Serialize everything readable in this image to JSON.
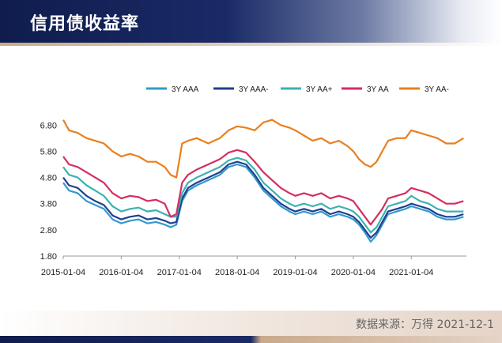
{
  "header": {
    "title": "信用债收益率"
  },
  "footer": {
    "source": "数据来源：万得 2021-12-1"
  },
  "colors": {
    "3Y AAA": "#3399cc",
    "3Y AAA-": "#1f3f8f",
    "3Y AA+": "#3bb2b2",
    "3Y AA": "#d42e63",
    "3Y AA-": "#e8801e"
  },
  "chart_data": {
    "type": "line",
    "title": "",
    "xlabel": "",
    "ylabel": "",
    "x_tick_labels": [
      "2015-01-04",
      "2016-01-04",
      "2017-01-04",
      "2018-01-04",
      "2019-01-04",
      "2020-01-04",
      "2021-01-04"
    ],
    "x_ticks": [
      2015.0,
      2016.0,
      2017.0,
      2018.0,
      2019.0,
      2020.0,
      2021.0
    ],
    "xlim": [
      2015.0,
      2021.95
    ],
    "y_tick_labels": [
      "6.80",
      "5.80",
      "4.80",
      "3.80",
      "2.80",
      "1.80"
    ],
    "y_ticks": [
      6.8,
      5.8,
      4.8,
      3.8,
      2.8,
      1.8
    ],
    "ylim": [
      1.8,
      7.2
    ],
    "legend_position": "top",
    "series": [
      {
        "name": "3Y AAA",
        "x": [
          2015.0,
          2015.1,
          2015.25,
          2015.4,
          2015.55,
          2015.7,
          2015.85,
          2016.0,
          2016.15,
          2016.3,
          2016.45,
          2016.6,
          2016.75,
          2016.85,
          2016.95,
          2017.05,
          2017.15,
          2017.3,
          2017.5,
          2017.7,
          2017.85,
          2018.0,
          2018.15,
          2018.3,
          2018.45,
          2018.6,
          2018.75,
          2018.9,
          2019.0,
          2019.15,
          2019.3,
          2019.45,
          2019.6,
          2019.75,
          2019.9,
          2020.0,
          2020.1,
          2020.2,
          2020.3,
          2020.4,
          2020.5,
          2020.6,
          2020.75,
          2020.9,
          2021.0,
          2021.15,
          2021.3,
          2021.45,
          2021.6,
          2021.75,
          2021.9
        ],
        "values": [
          4.6,
          4.3,
          4.2,
          3.9,
          3.75,
          3.6,
          3.2,
          3.05,
          3.15,
          3.2,
          3.05,
          3.1,
          3.0,
          2.9,
          3.0,
          3.9,
          4.3,
          4.5,
          4.7,
          4.9,
          5.2,
          5.3,
          5.2,
          4.8,
          4.3,
          4.0,
          3.7,
          3.5,
          3.4,
          3.5,
          3.4,
          3.5,
          3.3,
          3.4,
          3.3,
          3.2,
          3.0,
          2.7,
          2.35,
          2.6,
          3.0,
          3.4,
          3.5,
          3.6,
          3.7,
          3.6,
          3.5,
          3.3,
          3.2,
          3.2,
          3.3
        ]
      },
      {
        "name": "3Y AAA-",
        "x": [
          2015.0,
          2015.1,
          2015.25,
          2015.4,
          2015.55,
          2015.7,
          2015.85,
          2016.0,
          2016.15,
          2016.3,
          2016.45,
          2016.6,
          2016.75,
          2016.85,
          2016.95,
          2017.05,
          2017.15,
          2017.3,
          2017.5,
          2017.7,
          2017.85,
          2018.0,
          2018.15,
          2018.3,
          2018.45,
          2018.6,
          2018.75,
          2018.9,
          2019.0,
          2019.15,
          2019.3,
          2019.45,
          2019.6,
          2019.75,
          2019.9,
          2020.0,
          2020.1,
          2020.2,
          2020.3,
          2020.4,
          2020.5,
          2020.6,
          2020.75,
          2020.9,
          2021.0,
          2021.15,
          2021.3,
          2021.45,
          2021.6,
          2021.75,
          2021.9
        ],
        "values": [
          4.8,
          4.5,
          4.4,
          4.1,
          3.9,
          3.75,
          3.35,
          3.2,
          3.3,
          3.35,
          3.2,
          3.25,
          3.15,
          3.05,
          3.1,
          4.0,
          4.4,
          4.6,
          4.8,
          5.0,
          5.3,
          5.4,
          5.3,
          4.9,
          4.4,
          4.1,
          3.8,
          3.6,
          3.5,
          3.6,
          3.5,
          3.6,
          3.4,
          3.5,
          3.4,
          3.3,
          3.1,
          2.8,
          2.5,
          2.7,
          3.1,
          3.5,
          3.6,
          3.7,
          3.8,
          3.7,
          3.6,
          3.4,
          3.3,
          3.3,
          3.4
        ]
      },
      {
        "name": "3Y AA+",
        "x": [
          2015.0,
          2015.1,
          2015.25,
          2015.4,
          2015.55,
          2015.7,
          2015.85,
          2016.0,
          2016.15,
          2016.3,
          2016.45,
          2016.6,
          2016.75,
          2016.85,
          2016.95,
          2017.05,
          2017.15,
          2017.3,
          2017.5,
          2017.7,
          2017.85,
          2018.0,
          2018.15,
          2018.3,
          2018.45,
          2018.6,
          2018.75,
          2018.9,
          2019.0,
          2019.15,
          2019.3,
          2019.45,
          2019.6,
          2019.75,
          2019.9,
          2020.0,
          2020.1,
          2020.2,
          2020.3,
          2020.4,
          2020.5,
          2020.6,
          2020.75,
          2020.9,
          2021.0,
          2021.15,
          2021.3,
          2021.45,
          2021.6,
          2021.75,
          2021.9
        ],
        "values": [
          5.2,
          4.9,
          4.8,
          4.5,
          4.3,
          4.1,
          3.7,
          3.5,
          3.6,
          3.65,
          3.5,
          3.55,
          3.4,
          3.3,
          3.3,
          4.2,
          4.6,
          4.8,
          5.0,
          5.2,
          5.45,
          5.55,
          5.45,
          5.1,
          4.6,
          4.3,
          4.0,
          3.8,
          3.7,
          3.8,
          3.7,
          3.8,
          3.6,
          3.7,
          3.6,
          3.5,
          3.3,
          3.0,
          2.7,
          2.9,
          3.3,
          3.7,
          3.8,
          3.9,
          4.1,
          3.9,
          3.8,
          3.6,
          3.5,
          3.5,
          3.5
        ]
      },
      {
        "name": "3Y AA",
        "x": [
          2015.0,
          2015.1,
          2015.25,
          2015.4,
          2015.55,
          2015.7,
          2015.85,
          2016.0,
          2016.15,
          2016.3,
          2016.45,
          2016.6,
          2016.75,
          2016.85,
          2016.95,
          2017.05,
          2017.15,
          2017.3,
          2017.5,
          2017.7,
          2017.85,
          2018.0,
          2018.15,
          2018.3,
          2018.45,
          2018.6,
          2018.75,
          2018.9,
          2019.0,
          2019.15,
          2019.3,
          2019.45,
          2019.6,
          2019.75,
          2019.9,
          2020.0,
          2020.1,
          2020.2,
          2020.3,
          2020.4,
          2020.5,
          2020.6,
          2020.75,
          2020.9,
          2021.0,
          2021.15,
          2021.3,
          2021.45,
          2021.6,
          2021.75,
          2021.9
        ],
        "values": [
          5.6,
          5.3,
          5.2,
          5.0,
          4.8,
          4.6,
          4.2,
          4.0,
          4.1,
          4.05,
          3.9,
          3.95,
          3.8,
          3.3,
          3.4,
          4.6,
          4.9,
          5.1,
          5.3,
          5.5,
          5.75,
          5.85,
          5.75,
          5.4,
          5.0,
          4.7,
          4.4,
          4.2,
          4.1,
          4.2,
          4.1,
          4.2,
          4.0,
          4.1,
          4.0,
          3.9,
          3.6,
          3.3,
          3.0,
          3.3,
          3.6,
          4.0,
          4.1,
          4.2,
          4.4,
          4.3,
          4.2,
          4.0,
          3.8,
          3.8,
          3.9
        ]
      },
      {
        "name": "3Y AA-",
        "x": [
          2015.0,
          2015.1,
          2015.25,
          2015.4,
          2015.55,
          2015.7,
          2015.85,
          2016.0,
          2016.15,
          2016.3,
          2016.45,
          2016.6,
          2016.75,
          2016.85,
          2016.95,
          2017.05,
          2017.15,
          2017.3,
          2017.5,
          2017.7,
          2017.85,
          2018.0,
          2018.15,
          2018.3,
          2018.45,
          2018.6,
          2018.75,
          2018.9,
          2019.0,
          2019.15,
          2019.3,
          2019.45,
          2019.6,
          2019.75,
          2019.9,
          2020.0,
          2020.1,
          2020.2,
          2020.3,
          2020.4,
          2020.5,
          2020.6,
          2020.75,
          2020.9,
          2021.0,
          2021.15,
          2021.3,
          2021.45,
          2021.6,
          2021.75,
          2021.9
        ],
        "values": [
          7.0,
          6.6,
          6.5,
          6.3,
          6.2,
          6.1,
          5.8,
          5.6,
          5.7,
          5.6,
          5.4,
          5.4,
          5.2,
          4.9,
          4.8,
          6.1,
          6.2,
          6.3,
          6.1,
          6.3,
          6.6,
          6.75,
          6.7,
          6.6,
          6.9,
          7.0,
          6.8,
          6.7,
          6.6,
          6.4,
          6.2,
          6.3,
          6.1,
          6.2,
          6.0,
          5.8,
          5.5,
          5.3,
          5.2,
          5.4,
          5.8,
          6.2,
          6.3,
          6.3,
          6.6,
          6.5,
          6.4,
          6.3,
          6.1,
          6.1,
          6.3
        ]
      }
    ]
  }
}
